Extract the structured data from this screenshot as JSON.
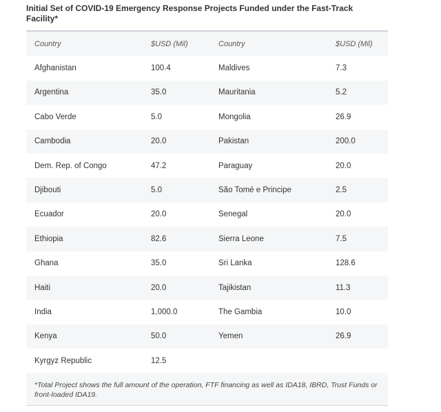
{
  "title": "Initial Set of COVID-19 Emergency Response Projects Funded under the Fast-Track Facility*",
  "headers": [
    "Country",
    "$USD (Mil)",
    "Country",
    "$USD (Mil)"
  ],
  "rows": [
    [
      "Afghanistan",
      "100.4",
      "Maldives",
      "7.3"
    ],
    [
      "Argentina",
      "35.0",
      "Mauritania",
      "5.2"
    ],
    [
      "Cabo Verde",
      "5.0",
      "Mongolia",
      "26.9"
    ],
    [
      "Cambodia",
      "20.0",
      "Pakistan",
      "200.0"
    ],
    [
      "Dem. Rep. of Congo",
      "47.2",
      "Paraguay",
      "20.0"
    ],
    [
      "Djibouti",
      "5.0",
      "São Tomé e Principe",
      "2.5"
    ],
    [
      "Ecuador",
      "20.0",
      "Senegal",
      "20.0"
    ],
    [
      "Ethiopia",
      "82.6",
      "Sierra Leone",
      "7.5"
    ],
    [
      "Ghana",
      "35.0",
      "Sri Lanka",
      "128.6"
    ],
    [
      "Haiti",
      "20.0",
      "Tajikistan",
      "11.3"
    ],
    [
      "India",
      "1,000.0",
      "The Gambia",
      "10.0"
    ],
    [
      "Kenya",
      "50.0",
      "Yemen",
      "26.9"
    ],
    [
      "Kyrgyz Republic",
      "12.5",
      "",
      ""
    ]
  ],
  "footnote": "*Total Project shows the full amount of the operation, FTF financing as well as IDA18, IBRD, Trust Funds or front-loaded IDA19."
}
